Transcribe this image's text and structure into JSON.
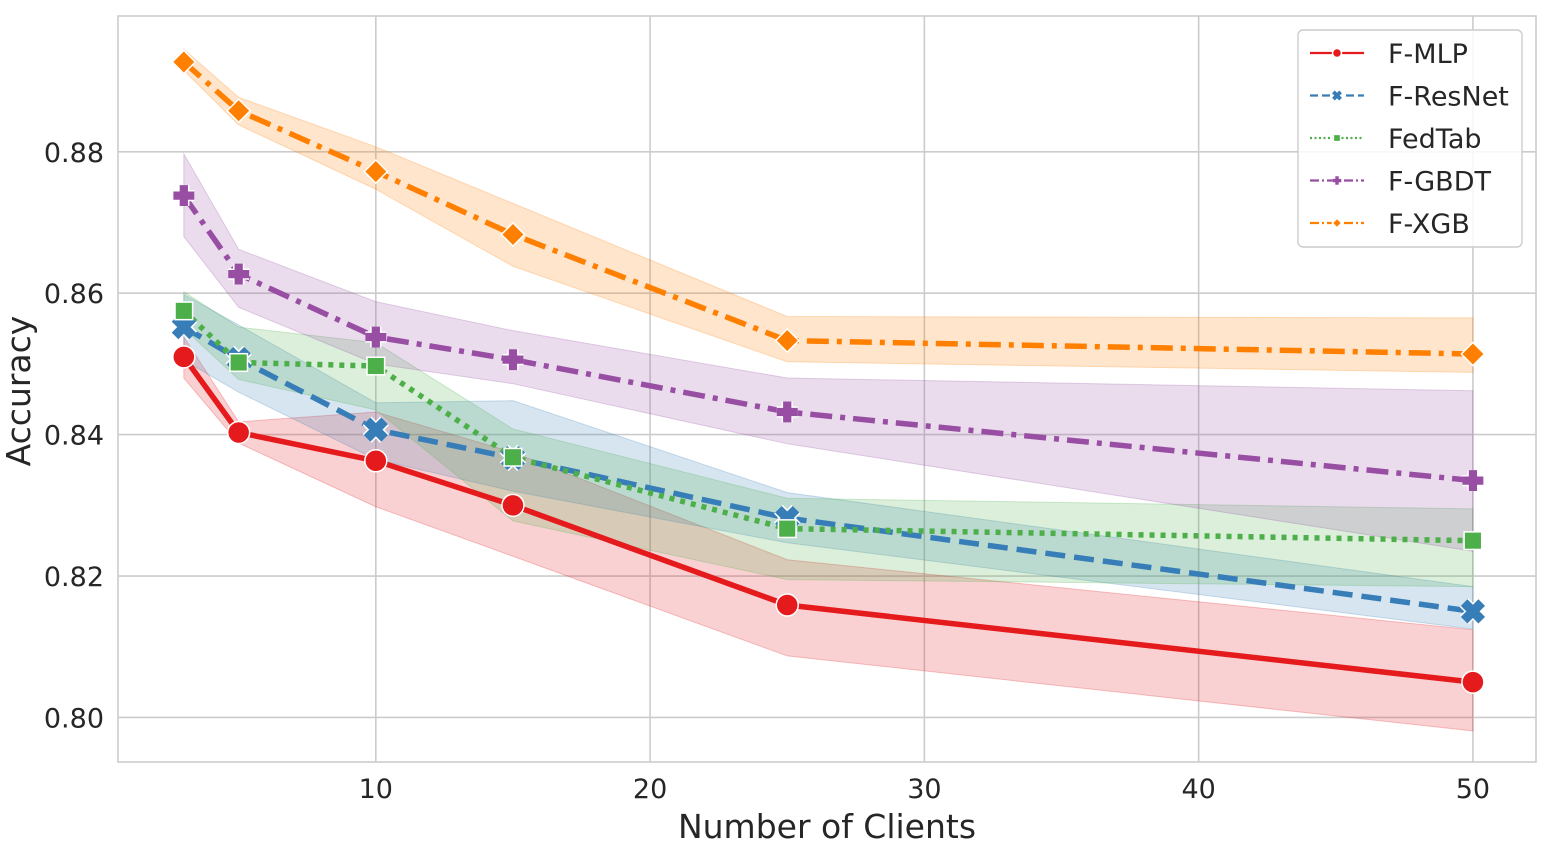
{
  "chart_data": {
    "type": "line",
    "title": "",
    "xlabel": "Number of Clients",
    "ylabel": "Accuracy",
    "xlim": [
      0.6,
      52.3
    ],
    "ylim": [
      0.7937,
      0.8992
    ],
    "xticks": [
      10,
      20,
      30,
      40,
      50
    ],
    "yticks": [
      0.8,
      0.82,
      0.84,
      0.86,
      0.88
    ],
    "xtick_labels": [
      "10",
      "20",
      "30",
      "40",
      "50"
    ],
    "ytick_labels": [
      "0.80",
      "0.82",
      "0.84",
      "0.86",
      "0.88"
    ],
    "grid": true,
    "legend_position": "top-right",
    "x": [
      3,
      5,
      10,
      15,
      25,
      50
    ],
    "series": [
      {
        "name": "F-MLP",
        "color": "#e41a1c",
        "marker": "circle",
        "dash": "solid",
        "values": [
          0.851,
          0.8403,
          0.8363,
          0.83,
          0.8159,
          0.805
        ],
        "lower": [
          0.848,
          0.8388,
          0.8298,
          0.8228,
          0.8087,
          0.7981
        ],
        "upper": [
          0.8538,
          0.8418,
          0.8432,
          0.8375,
          0.8223,
          0.8124
        ]
      },
      {
        "name": "F-ResNet",
        "color": "#377eb8",
        "marker": "x",
        "dash": "dashed",
        "values": [
          0.8552,
          0.8507,
          0.8407,
          0.8367,
          0.8282,
          0.815
        ],
        "lower": [
          0.8505,
          0.846,
          0.8365,
          0.832,
          0.8247,
          0.8125
        ],
        "upper": [
          0.8598,
          0.8555,
          0.8445,
          0.8448,
          0.8318,
          0.8185
        ]
      },
      {
        "name": "FedTab",
        "color": "#4daf4a",
        "marker": "square",
        "dash": "dotted",
        "values": [
          0.8575,
          0.8502,
          0.8497,
          0.8368,
          0.8267,
          0.825
        ],
        "lower": [
          0.855,
          0.8478,
          0.8435,
          0.8278,
          0.8195,
          0.8185
        ],
        "upper": [
          0.8602,
          0.8552,
          0.853,
          0.8408,
          0.831,
          0.8295
        ]
      },
      {
        "name": "F-GBDT",
        "color": "#984ea3",
        "marker": "plus",
        "dash": "dashdot",
        "values": [
          0.8738,
          0.8627,
          0.8538,
          0.8506,
          0.8432,
          0.8335
        ],
        "lower": [
          0.868,
          0.858,
          0.85,
          0.8472,
          0.8387,
          0.8235
        ],
        "upper": [
          0.8797,
          0.8662,
          0.8588,
          0.8547,
          0.848,
          0.8462
        ]
      },
      {
        "name": "F-XGB",
        "color": "#ff7f00",
        "marker": "diamond",
        "dash": "dashdot",
        "values": [
          0.8927,
          0.8858,
          0.8772,
          0.8683,
          0.8533,
          0.8514
        ],
        "lower": [
          0.8915,
          0.8838,
          0.8747,
          0.8638,
          0.8503,
          0.8488
        ],
        "upper": [
          0.8945,
          0.8877,
          0.8807,
          0.8727,
          0.8567,
          0.8565
        ]
      }
    ]
  }
}
